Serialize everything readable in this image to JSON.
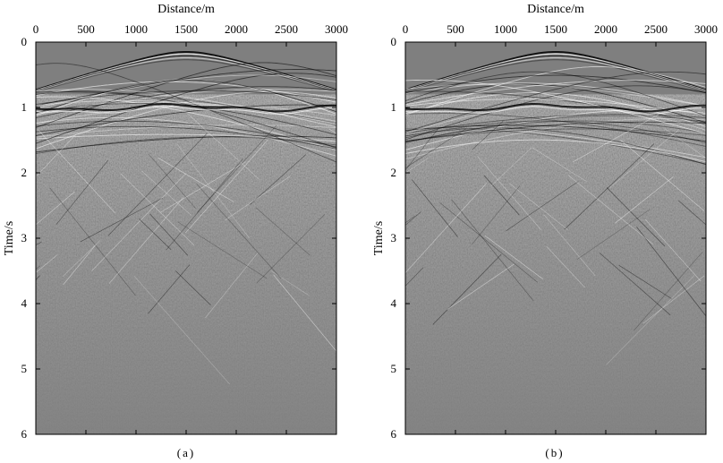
{
  "chart_data": [
    {
      "type": "heatmap",
      "title": "",
      "xlabel": "Distance/m",
      "ylabel": "Time/s",
      "xlim": [
        0,
        3000
      ],
      "ylim": [
        0,
        6
      ],
      "x_ticks": [
        0,
        500,
        1000,
        1500,
        2000,
        2500,
        3000
      ],
      "y_ticks": [
        0,
        1,
        2,
        3,
        4,
        5,
        6
      ],
      "x_axis_position": "top",
      "y_inverted": true,
      "colormap": "grayscale",
      "caption": "(a)",
      "grid": false
    },
    {
      "type": "heatmap",
      "title": "",
      "xlabel": "Distance/m",
      "ylabel": "Time/s",
      "xlim": [
        0,
        3000
      ],
      "ylim": [
        0,
        6
      ],
      "x_ticks": [
        0,
        500,
        1000,
        1500,
        2000,
        2500,
        3000
      ],
      "y_ticks": [
        0,
        1,
        2,
        3,
        4,
        5,
        6
      ],
      "x_axis_position": "top",
      "y_inverted": true,
      "colormap": "grayscale",
      "caption": "(b)",
      "grid": false
    }
  ],
  "colors": {
    "background_gray": "#7f7f7f",
    "event_dark": "#000000",
    "event_light": "#ffffff"
  }
}
